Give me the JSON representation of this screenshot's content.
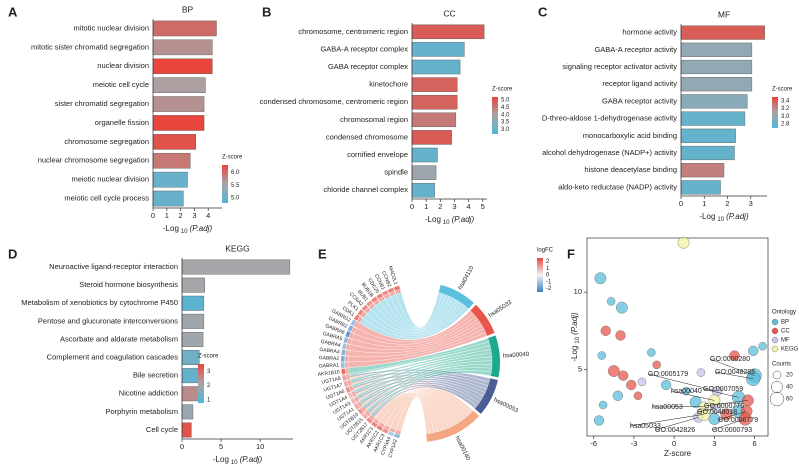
{
  "chart_data": [
    {
      "panel": "A",
      "type": "barh",
      "title": "BP",
      "categories": [
        "mitotic nuclear division",
        "mitotic sister chromatid segregation",
        "nuclear division",
        "meiotic cell cycle",
        "sister chromatid segregation",
        "organelle fission",
        "chromosome segregation",
        "nuclear chromosome segregation",
        "meiotic nuclear division",
        "meiotic cell cycle process"
      ],
      "values": [
        4.6,
        4.3,
        4.3,
        3.8,
        3.7,
        3.7,
        3.1,
        2.7,
        2.5,
        2.2
      ],
      "zscores": [
        6.0,
        5.7,
        6.3,
        5.6,
        5.7,
        6.3,
        6.2,
        5.9,
        5.0,
        5.0
      ],
      "colorscale": [
        "#4fb6d8",
        "#a9a4a7",
        "#e8453c"
      ],
      "zlim": [
        4.8,
        6.3
      ],
      "zticks": [
        {
          "value": 5,
          "label": "5.0"
        },
        5.5,
        {
          "value": 6,
          "label": "6.0"
        }
      ],
      "legend_title": "Z-score",
      "xlim": [
        0,
        5
      ],
      "xticks": [
        0,
        1,
        2,
        3,
        4
      ],
      "xlabel": [
        "-Log",
        "10",
        "(P.adj)"
      ]
    },
    {
      "panel": "B",
      "type": "barh",
      "title": "CC",
      "categories": [
        "chromosome, centromeric region",
        "GABA-A receptor complex",
        "GABA receptor complex",
        "kinetochore",
        "condensed chromosome, centromeric region",
        "chromosomal region",
        "condensed chromosome",
        "cornified envelope",
        "spindle",
        "chloride channel complex"
      ],
      "values": [
        5.1,
        3.7,
        3.4,
        3.2,
        3.2,
        3.1,
        2.8,
        1.8,
        1.7,
        1.6
      ],
      "zscores": [
        4.9,
        3.0,
        3.0,
        4.8,
        4.8,
        4.5,
        4.9,
        3.0,
        3.8,
        3.0
      ],
      "colorscale": [
        "#4fb6d8",
        "#a9a4a7",
        "#e8453c"
      ],
      "zlim": [
        2.7,
        5.2
      ],
      "zticks": [
        {
          "value": 3,
          "label": "3.0"
        },
        3.5,
        {
          "value": 4,
          "label": "4.0"
        },
        4.5,
        {
          "value": 5,
          "label": "5.0"
        }
      ],
      "legend_title": "Z-score",
      "xlim": [
        0,
        5.3
      ],
      "xticks": [
        0,
        1,
        2,
        3,
        4,
        5
      ],
      "xlabel": [
        "-Log",
        "10",
        "(P.adj)"
      ]
    },
    {
      "panel": "C",
      "type": "barh",
      "title": "MF",
      "categories": [
        "hormone activity",
        "GABA-A receptor activity",
        "signaling receptor activator activity",
        "receptor ligand activity",
        "GABA receptor activity",
        "D-threo-aldose 1-dehydrogenase activity",
        "monocarboxylic acid binding",
        "alcohol dehydrogenase (NADP+) activity",
        "histone deacetylase binding",
        "aldo-keto reductase (NADP) activity"
      ],
      "values": [
        3.6,
        3.05,
        3.05,
        3.05,
        2.85,
        2.75,
        2.35,
        2.3,
        1.85,
        1.7
      ],
      "zscores": [
        3.4,
        3.0,
        3.0,
        3.0,
        2.95,
        2.8,
        2.8,
        2.8,
        3.25,
        2.8
      ],
      "colorscale": [
        "#4fb6d8",
        "#a9a4a7",
        "#e8453c"
      ],
      "zlim": [
        2.7,
        3.5
      ],
      "zticks": [
        2.8,
        {
          "value": 3,
          "label": "3.0"
        },
        3.2,
        3.4
      ],
      "legend_title": "Z-score",
      "xlim": [
        0,
        3.7
      ],
      "xticks": [
        0,
        1,
        2,
        3
      ],
      "xlabel": [
        "-Log",
        "10",
        "(P.adj)"
      ]
    },
    {
      "panel": "D",
      "type": "barh",
      "title": "KEGG",
      "categories": [
        "Neuroactive ligand-receptor interaction",
        "Steroid hormone biosynthesis",
        "Metabolism of xenobiotics by cytochrome P450",
        "Pentose and glucuronate interconversions",
        "Ascorbate and aldarate metabolism",
        "Complement and coagulation cascades",
        "Bile secretion",
        "Nicotine addiction",
        "Porphyrin metabolism",
        "Cell cycle"
      ],
      "values": [
        13.8,
        2.9,
        2.8,
        2.8,
        2.7,
        2.2,
        2.1,
        2.1,
        1.4,
        1.2
      ],
      "zscores": [
        2.1,
        2.1,
        1.0,
        2.0,
        2.0,
        1.3,
        1.1,
        2.5,
        1.9,
        3.3
      ],
      "colorscale": [
        "#4fb6d8",
        "#a9a4a7",
        "#e8453c"
      ],
      "zlim": [
        0.8,
        3.5
      ],
      "zticks": [
        1,
        2,
        3
      ],
      "legend_title": "Z-score",
      "xlim": [
        0,
        14.2
      ],
      "xticks": [
        0,
        5,
        10
      ],
      "xlabel": [
        "-Log",
        "10",
        "(P.adj)"
      ]
    },
    {
      "panel": "E",
      "type": "chord",
      "genes": [
        "MAD2L1",
        "CCNB2",
        "CCNB1",
        "CDC20",
        "BUB1B",
        "BUB1",
        "CCNA2",
        "PLK1",
        "CDK1",
        "GABRG2",
        "GABRB2",
        "GABRA6",
        "GABRA5",
        "GABRA4",
        "GABRA3",
        "GABRA2",
        "GABRA1",
        "AKR1B10",
        "UGT1A8",
        "UGT1A7",
        "UGT1A6",
        "UGT1A4",
        "UGT1A3",
        "UGT1A1",
        "UGT2B10",
        "UGT2B15",
        "UGT2B17",
        "AKR1C1",
        "AKR1C2",
        "AKR1C3",
        "CYP3A4",
        "CYP1A2"
      ],
      "logfc": [
        1.8,
        1.6,
        1.5,
        1.7,
        1.6,
        1.4,
        1.5,
        1.6,
        1.7,
        -1.2,
        -1.5,
        -2.0,
        -1.3,
        -1.1,
        -1.4,
        -1.6,
        -1.2,
        1.9,
        1.2,
        1.0,
        1.4,
        0.8,
        0.9,
        1.1,
        1.3,
        1.0,
        1.5,
        1.6,
        1.7,
        1.4,
        -0.9,
        -1.3
      ],
      "pathways": [
        "hsa04110",
        "hsa05033",
        "hsa00040",
        "hsa00053",
        "hsa00140"
      ],
      "colors": [
        "#5bc0de",
        "#e8574c",
        "#1ea88c",
        "#4a5d94",
        "#f4a582"
      ],
      "links": [
        [
          0,
          0
        ],
        [
          1,
          0
        ],
        [
          2,
          0
        ],
        [
          3,
          0
        ],
        [
          4,
          0
        ],
        [
          5,
          0
        ],
        [
          6,
          0
        ],
        [
          7,
          0
        ],
        [
          8,
          0
        ],
        [
          9,
          1
        ],
        [
          10,
          1
        ],
        [
          11,
          1
        ],
        [
          12,
          1
        ],
        [
          13,
          1
        ],
        [
          14,
          1
        ],
        [
          15,
          1
        ],
        [
          16,
          1
        ],
        [
          17,
          2
        ],
        [
          18,
          2
        ],
        [
          18,
          3
        ],
        [
          18,
          4
        ],
        [
          19,
          2
        ],
        [
          19,
          3
        ],
        [
          19,
          4
        ],
        [
          20,
          2
        ],
        [
          20,
          3
        ],
        [
          20,
          4
        ],
        [
          21,
          2
        ],
        [
          21,
          3
        ],
        [
          21,
          4
        ],
        [
          22,
          2
        ],
        [
          22,
          3
        ],
        [
          22,
          4
        ],
        [
          23,
          2
        ],
        [
          23,
          3
        ],
        [
          23,
          4
        ],
        [
          24,
          2
        ],
        [
          24,
          3
        ],
        [
          24,
          4
        ],
        [
          25,
          2
        ],
        [
          25,
          3
        ],
        [
          25,
          4
        ],
        [
          26,
          2
        ],
        [
          26,
          3
        ],
        [
          26,
          4
        ],
        [
          27,
          4
        ],
        [
          28,
          4
        ],
        [
          29,
          4
        ],
        [
          30,
          4
        ],
        [
          31,
          4
        ]
      ],
      "legend_title": "logFC",
      "colorscale": [
        "#3b7fc4",
        "#f4f4f4",
        "#e8453c"
      ],
      "zlim": [
        -2.5,
        2.5
      ],
      "zticks": [
        -2,
        -1,
        0,
        1,
        2
      ]
    },
    {
      "panel": "F",
      "type": "bubble",
      "xlabel": "Z-score",
      "ylabel": [
        "-Log",
        "10",
        "(P.adj)"
      ],
      "xlim": [
        -6.5,
        7
      ],
      "ylim": [
        0.7,
        13.5
      ],
      "xticks": [
        -6,
        -3,
        0,
        3,
        6
      ],
      "yticks": [
        5,
        10
      ],
      "legend_title": "Ontology",
      "size_title": "Counts",
      "size_legend": [
        20,
        40,
        60
      ],
      "series": [
        {
          "name": "BP",
          "color": "#5bbfdc",
          "x": [
            -5.5,
            -3.9,
            -4.7,
            -5.4,
            -4.2,
            -5.6,
            -5.3,
            -1.7,
            -0.6,
            0.9,
            1.6,
            5.9,
            6.6,
            4.8,
            3.0,
            6.0,
            5.9,
            4.8
          ],
          "values": [
            10.9,
            9.0,
            9.4,
            5.9,
            3.3,
            1.7,
            2.7,
            6.1,
            4.0,
            3.6,
            2.9,
            6.2,
            6.5,
            2.3,
            1.8,
            4.6,
            4.4,
            3.2
          ],
          "sizes": [
            40,
            40,
            20,
            20,
            30,
            30,
            20,
            20,
            30,
            20,
            40,
            30,
            20,
            50,
            40,
            60,
            60,
            50
          ],
          "labels": [
            null,
            null,
            null,
            null,
            null,
            null,
            null,
            null,
            null,
            null,
            null,
            null,
            null,
            null,
            null,
            "GO:0000280",
            "GO:0048285",
            "GO:0007059"
          ]
        },
        {
          "name": "CC",
          "color": "#e8574c",
          "x": [
            -5.1,
            -4.0,
            -4.5,
            -3.8,
            -3.2,
            -2.7,
            -1.3,
            4.5,
            3.9,
            5.5,
            5.4,
            5.3
          ],
          "values": [
            7.5,
            7.2,
            4.9,
            4.6,
            4.0,
            3.3,
            5.3,
            5.9,
            2.1,
            3.0,
            2.3,
            1.8
          ],
          "sizes": [
            30,
            30,
            40,
            30,
            30,
            20,
            20,
            30,
            40,
            40,
            40,
            50
          ],
          "labels": [
            null,
            null,
            null,
            null,
            null,
            null,
            null,
            null,
            null,
            "GO:0000776",
            "GO:0000779",
            "GO:0000793"
          ]
        },
        {
          "name": "MF",
          "color": "#c7c3ea",
          "x": [
            -2.4,
            2.0,
            3.2,
            3.1,
            1.8
          ],
          "values": [
            4.2,
            4.8,
            3.6,
            2.5,
            1.9
          ],
          "sizes": [
            20,
            20,
            30,
            30,
            30
          ],
          "labels": [
            null,
            null,
            "GO:0005179",
            "GO:0048018",
            "GO:0042826"
          ]
        },
        {
          "name": "KEGG",
          "color": "#f3f1a5",
          "x": [
            0.7,
            3.0,
            2.2,
            2.2
          ],
          "values": [
            13.2,
            3.0,
            2.6,
            2.1
          ],
          "sizes": [
            40,
            40,
            30,
            50
          ],
          "labels": [
            null,
            "hsa00040",
            "hsa00053",
            "hsa05033"
          ]
        }
      ]
    }
  ]
}
